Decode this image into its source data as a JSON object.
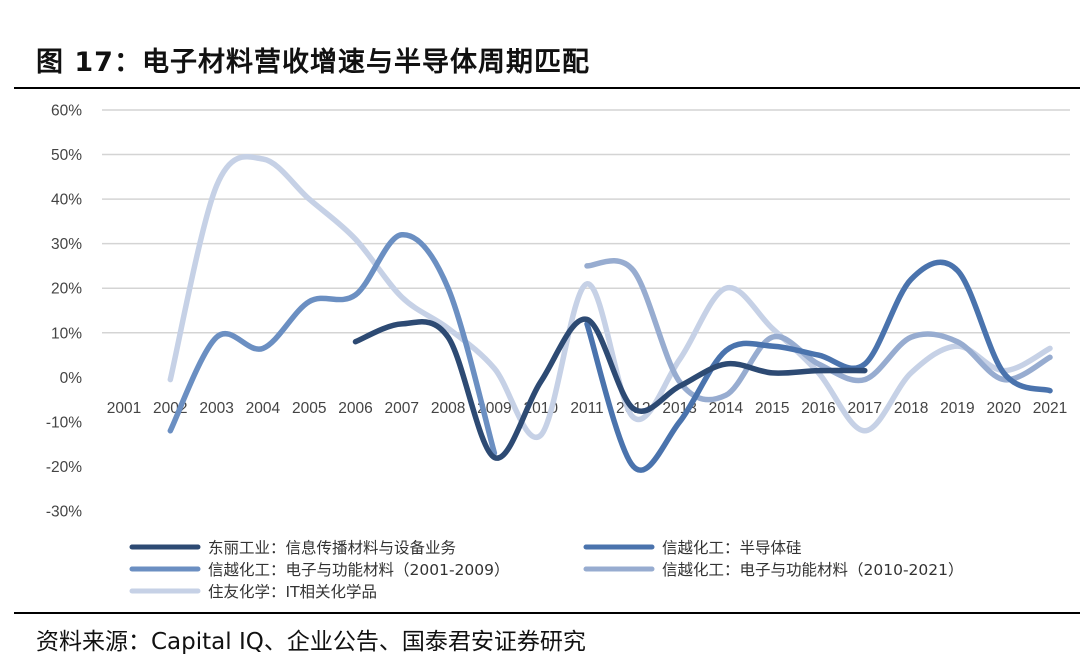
{
  "figure_title": "图 17：电子材料营收增速与半导体周期匹配",
  "source_text": "资料来源：Capital IQ、企业公告、国泰君安证券研究",
  "chart_data": {
    "type": "line",
    "smooth": true,
    "categories": [
      "2001",
      "2002",
      "2003",
      "2004",
      "2005",
      "2006",
      "2007",
      "2008",
      "2009",
      "2010",
      "2011",
      "2012",
      "2013",
      "2014",
      "2015",
      "2016",
      "2017",
      "2018",
      "2019",
      "2020",
      "2021"
    ],
    "ylim": [
      -30,
      60
    ],
    "yticks": [
      -30,
      -20,
      -10,
      0,
      10,
      20,
      30,
      40,
      50,
      60
    ],
    "ytick_labels": [
      "-30%",
      "-20%",
      "-10%",
      "0%",
      "10%",
      "20%",
      "30%",
      "40%",
      "50%",
      "60%"
    ],
    "grid": true,
    "legend_position": "bottom",
    "series": [
      {
        "name": "东丽工业：信息传播材料与设备业务",
        "color": "#2d4a73",
        "values": [
          null,
          null,
          null,
          null,
          null,
          8,
          12,
          9,
          -18,
          -1,
          13,
          -7,
          -2,
          3,
          1,
          1.5,
          1.5,
          null,
          null,
          null,
          null
        ]
      },
      {
        "name": "信越化工：半导体硅",
        "color": "#4a73ad",
        "values": [
          null,
          null,
          null,
          null,
          null,
          null,
          null,
          null,
          null,
          null,
          12,
          -20,
          -10,
          6,
          7,
          5,
          3,
          22,
          24,
          1,
          -3
        ]
      },
      {
        "name": "信越化工：电子与功能材料（2001-2009）",
        "color": "#6b8fc2",
        "values": [
          null,
          -12,
          9,
          6.5,
          17,
          18.5,
          32,
          20,
          -17,
          null,
          null,
          null,
          null,
          null,
          null,
          null,
          null,
          null,
          null,
          null,
          null
        ]
      },
      {
        "name": "信越化工：电子与功能材料（2010-2021）",
        "color": "#97acd0",
        "values": [
          null,
          null,
          null,
          null,
          null,
          null,
          null,
          null,
          null,
          null,
          25,
          24,
          -1,
          -4,
          9,
          3,
          -0.5,
          9,
          8,
          -0.5,
          4.5
        ]
      },
      {
        "name": "住友化学：IT相关化学品",
        "color": "#c6d1e6",
        "values": [
          null,
          -0.5,
          43,
          49,
          40,
          31,
          18,
          11,
          2,
          -13,
          21,
          -9,
          4,
          20,
          11,
          1,
          -12,
          1,
          7,
          1.5,
          6.5
        ]
      }
    ]
  }
}
